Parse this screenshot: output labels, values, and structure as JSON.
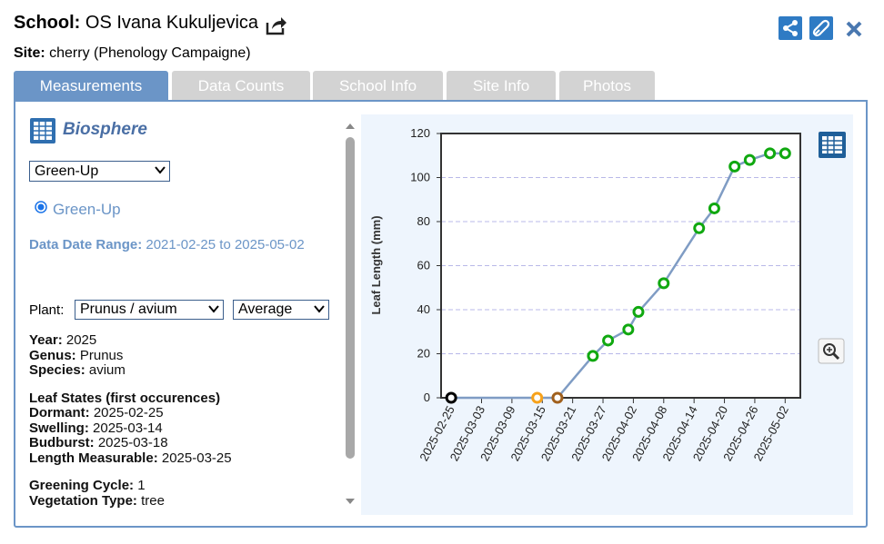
{
  "header": {
    "school_label": "School:",
    "school_name": "OS Ivana Kukuljevica",
    "site_label": "Site:",
    "site_name": "cherry (Phenology Campaigne)"
  },
  "tabs": [
    "Measurements",
    "Data Counts",
    "School Info",
    "Site Info",
    "Photos"
  ],
  "panel": {
    "sphere": "Biosphere",
    "protocol_select": "Green-Up",
    "radio": "Green-Up",
    "date_range_label": "Data Date Range:",
    "date_range": "2021-02-25 to 2025-05-02",
    "plant_label": "Plant:",
    "plant_select": "Prunus / avium",
    "mode_select": "Average",
    "info": [
      {
        "label": "Year:",
        "value": "2025"
      },
      {
        "label": "Genus:",
        "value": "Prunus"
      },
      {
        "label": "Species:",
        "value": "avium"
      }
    ],
    "leaf_states_title": "Leaf States (first occurences)",
    "leaf_states": [
      {
        "label": "Dormant:",
        "value": "2025-02-25"
      },
      {
        "label": "Swelling:",
        "value": "2025-03-14"
      },
      {
        "label": "Budburst:",
        "value": "2025-03-18"
      },
      {
        "label": "Length Measurable:",
        "value": "2025-03-25"
      }
    ],
    "extra": [
      {
        "label": "Greening Cycle:",
        "value": "1"
      },
      {
        "label": "Vegetation Type:",
        "value": "tree"
      }
    ]
  },
  "chart_data": {
    "type": "line",
    "y_label": "Leaf Length (mm)",
    "x": [
      "2025-02-25",
      "2025-03-14",
      "2025-03-18",
      "2025-03-25",
      "2025-03-28",
      "2025-04-01",
      "2025-04-03",
      "2025-04-08",
      "2025-04-15",
      "2025-04-18",
      "2025-04-22",
      "2025-04-25",
      "2025-04-29",
      "2025-05-02"
    ],
    "series": [
      {
        "color": "#7f9cc4",
        "values": [
          0,
          0,
          0,
          19,
          26,
          31,
          39,
          52,
          77,
          86,
          105,
          108,
          111,
          111
        ],
        "point_colors": [
          "#000000",
          "#f7a21b",
          "#a0601d",
          "#10a810",
          "#10a810",
          "#10a810",
          "#10a810",
          "#10a810",
          "#10a810",
          "#10a810",
          "#10a810",
          "#10a810",
          "#10a810",
          "#10a810"
        ]
      }
    ],
    "xlim": [
      "2025-02-23",
      "2025-05-05"
    ],
    "xticks": [
      "2025-02-25",
      "2025-03-03",
      "2025-03-09",
      "2025-03-15",
      "2025-03-21",
      "2025-03-27",
      "2025-04-02",
      "2025-04-08",
      "2025-04-14",
      "2025-04-20",
      "2025-04-26",
      "2025-05-02"
    ],
    "ylim": [
      0,
      120
    ],
    "yticks": [
      0,
      20,
      40,
      60,
      80,
      100,
      120
    ],
    "grid": true
  }
}
